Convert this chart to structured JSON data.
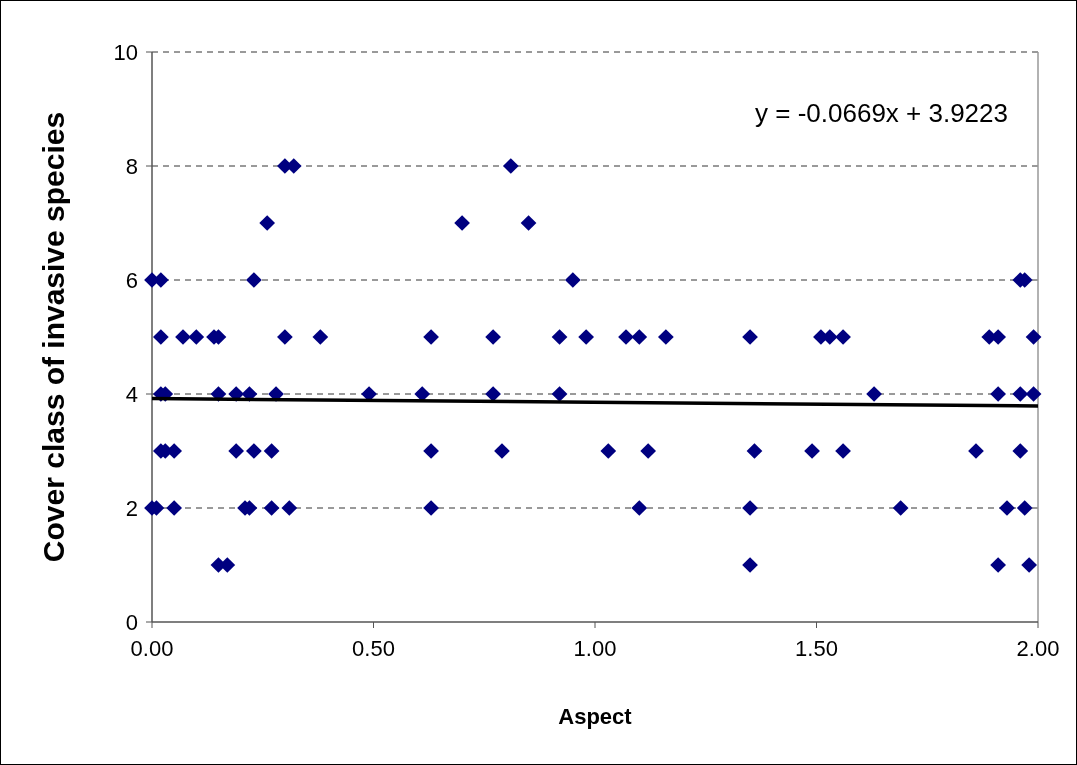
{
  "chart_data": {
    "type": "scatter",
    "xlabel": "Aspect",
    "ylabel": "Cover class of invasive species",
    "annotations": [
      "y = -0.0669x + 3.9223"
    ],
    "xlim": [
      0,
      2
    ],
    "xticks": [
      {
        "value": 0,
        "label": "0.00"
      },
      {
        "value": 0.5,
        "label": "0.50"
      },
      {
        "value": 1,
        "label": "1.00"
      },
      {
        "value": 1.5,
        "label": "1.50"
      },
      {
        "value": 2,
        "label": "2.00"
      }
    ],
    "ylim": [
      0,
      10
    ],
    "yticks": [
      0,
      2,
      4,
      6,
      8,
      10
    ],
    "grid": "y",
    "marker": "diamond",
    "series": [
      {
        "color": "#000080",
        "x": [
          0.3,
          0.32,
          0.81,
          0.26,
          0.7,
          0.85,
          0.0,
          0.02,
          0.23,
          0.95,
          1.96,
          1.97,
          0.02,
          0.07,
          0.1,
          0.14,
          0.15,
          0.3,
          0.38,
          0.63,
          0.77,
          0.92,
          0.98,
          1.07,
          1.1,
          1.16,
          1.35,
          1.51,
          1.53,
          1.56,
          1.89,
          1.91,
          1.99,
          0.02,
          0.03,
          0.15,
          0.19,
          0.22,
          0.28,
          0.49,
          0.61,
          0.77,
          0.92,
          1.63,
          1.91,
          1.96,
          1.99,
          0.02,
          0.03,
          0.05,
          0.19,
          0.23,
          0.27,
          0.63,
          0.79,
          1.03,
          1.12,
          1.36,
          1.49,
          1.56,
          1.86,
          1.96,
          0.0,
          0.01,
          0.05,
          0.21,
          0.22,
          0.27,
          0.31,
          0.63,
          1.1,
          1.35,
          1.69,
          1.93,
          1.97,
          0.15,
          0.17,
          1.35,
          1.91,
          1.98
        ],
        "values": [
          8,
          8,
          8,
          7,
          7,
          7,
          6,
          6,
          6,
          6,
          6,
          6,
          5,
          5,
          5,
          5,
          5,
          5,
          5,
          5,
          5,
          5,
          5,
          5,
          5,
          5,
          5,
          5,
          5,
          5,
          5,
          5,
          5,
          4,
          4,
          4,
          4,
          4,
          4,
          4,
          4,
          4,
          4,
          4,
          4,
          4,
          4,
          3,
          3,
          3,
          3,
          3,
          3,
          3,
          3,
          3,
          3,
          3,
          3,
          3,
          3,
          3,
          2,
          2,
          2,
          2,
          2,
          2,
          2,
          2,
          2,
          2,
          2,
          2,
          2,
          1,
          1,
          1,
          1,
          1
        ]
      },
      {
        "type": "line",
        "color": "#000000",
        "x": [
          0,
          2
        ],
        "values": [
          3.92,
          3.79
        ],
        "marker": "none"
      }
    ]
  }
}
